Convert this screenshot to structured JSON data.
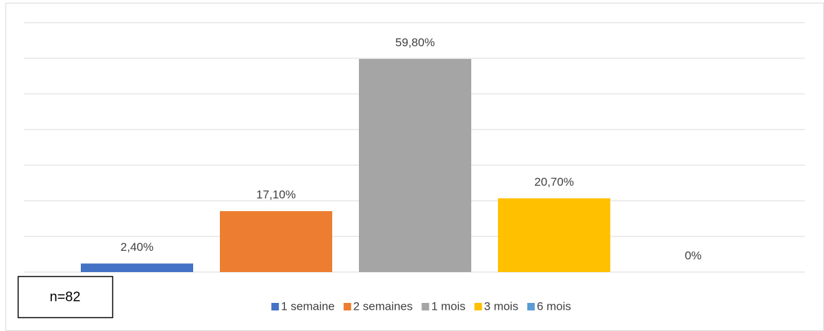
{
  "chart_data": {
    "type": "bar",
    "categories": [
      null
    ],
    "series": [
      {
        "name": "1 semaine",
        "color": "#4472c4",
        "values": [
          2.4
        ],
        "value_labels": [
          "2,40%"
        ]
      },
      {
        "name": "2 semaines",
        "color": "#ed7d31",
        "values": [
          17.1
        ],
        "value_labels": [
          "17,10%"
        ]
      },
      {
        "name": "1 mois",
        "color": "#a5a5a5",
        "values": [
          59.8
        ],
        "value_labels": [
          "59,80%"
        ]
      },
      {
        "name": "3 mois",
        "color": "#ffc000",
        "values": [
          20.7
        ],
        "value_labels": [
          "20,70%"
        ]
      },
      {
        "name": "6 mois",
        "color": "#5b9bd5",
        "values": [
          0
        ],
        "value_labels": [
          "0%"
        ]
      }
    ],
    "ylim": [
      0,
      70
    ],
    "yticks": [
      0,
      10,
      20,
      30,
      40,
      50,
      60,
      70
    ],
    "grid": true,
    "legend": "bottom",
    "annotation": "n=82"
  }
}
